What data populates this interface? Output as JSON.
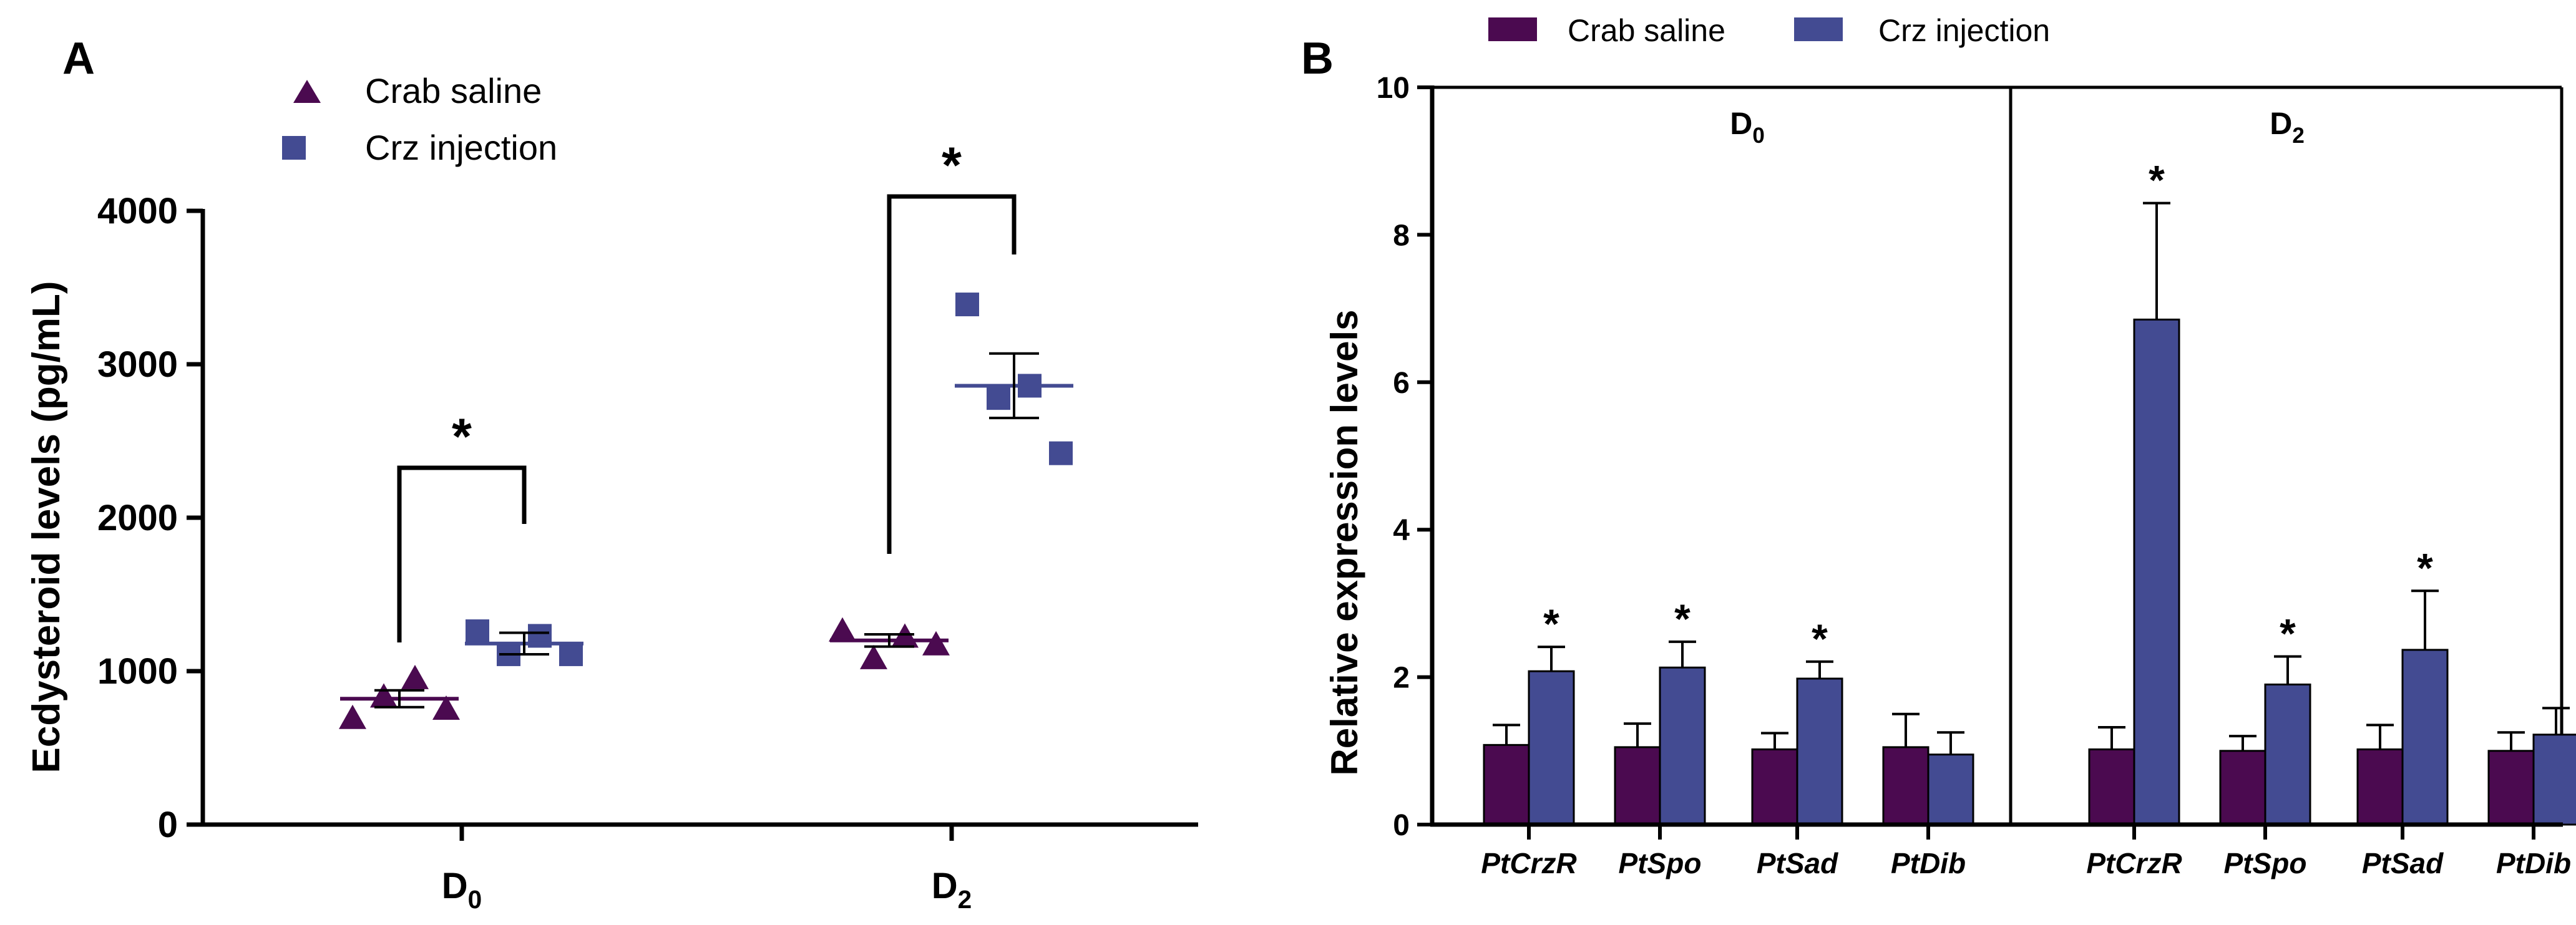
{
  "colors": {
    "saline": "#4b0a50",
    "crz": "#434b92",
    "axis": "#000000"
  },
  "chart_data": [
    {
      "panel_label": "A",
      "type": "scatter",
      "ylabel": "Ecdysteroid levels (pg/mL)",
      "ylim": [
        0,
        4000
      ],
      "yticks": [
        "0",
        "1000",
        "2000",
        "3000",
        "4000"
      ],
      "yticks_values": [
        0,
        1000,
        2000,
        3000,
        4000
      ],
      "legend": [
        "Crab saline",
        "Crz injection"
      ],
      "groups": [
        {
          "label": "D",
          "sub": "0"
        },
        {
          "label": "D",
          "sub": "2"
        }
      ],
      "series": [
        {
          "name": "Crab saline",
          "marker": "triangle",
          "points": [
            {
              "group": 0,
              "values": [
                700,
                840,
                960,
                760
              ],
              "mean": 820,
              "sem": 55
            },
            {
              "group": 1,
              "values": [
                1270,
                1090,
                1230,
                1180
              ],
              "mean": 1200,
              "sem": 40
            }
          ]
        },
        {
          "name": "Crz injection",
          "marker": "square",
          "points": [
            {
              "group": 0,
              "values": [
                1260,
                1110,
                1230,
                1110
              ],
              "mean": 1180,
              "sem": 70
            },
            {
              "group": 1,
              "values": [
                3390,
                2780,
                2860,
                2420
              ],
              "mean": 2860,
              "sem": 210
            }
          ]
        }
      ],
      "significance": [
        {
          "group": 0,
          "label": "*"
        },
        {
          "group": 1,
          "label": "*"
        }
      ]
    },
    {
      "panel_label": "B",
      "type": "bar",
      "ylabel": "Relative expression levels",
      "ylim": [
        0,
        10
      ],
      "yticks": [
        "0",
        "2",
        "4",
        "6",
        "8",
        "10"
      ],
      "yticks_values": [
        0,
        2,
        4,
        6,
        8,
        10
      ],
      "legend": [
        "Crab saline",
        "Crz injection"
      ],
      "sections": [
        {
          "label": "D",
          "sub": "0"
        },
        {
          "label": "D",
          "sub": "2"
        }
      ],
      "categories": [
        "PtCrzR",
        "PtSpo",
        "PtSad",
        "PtDib",
        "PtCrzR",
        "PtSpo",
        "PtSad",
        "PtDib"
      ],
      "series": [
        {
          "name": "Crab saline",
          "values": [
            1.08,
            1.05,
            1.02,
            1.05,
            1.02,
            1.0,
            1.02,
            1.0
          ],
          "errors": [
            0.27,
            0.32,
            0.22,
            0.45,
            0.3,
            0.2,
            0.33,
            0.25
          ]
        },
        {
          "name": "Crz injection",
          "values": [
            2.08,
            2.13,
            1.98,
            0.95,
            6.85,
            1.9,
            2.37,
            1.22
          ],
          "errors": [
            0.33,
            0.35,
            0.23,
            0.3,
            1.58,
            0.38,
            0.8,
            0.36
          ]
        }
      ],
      "significance_labels": [
        "*",
        "*",
        "*",
        "",
        "*",
        "*",
        "*",
        ""
      ]
    }
  ]
}
